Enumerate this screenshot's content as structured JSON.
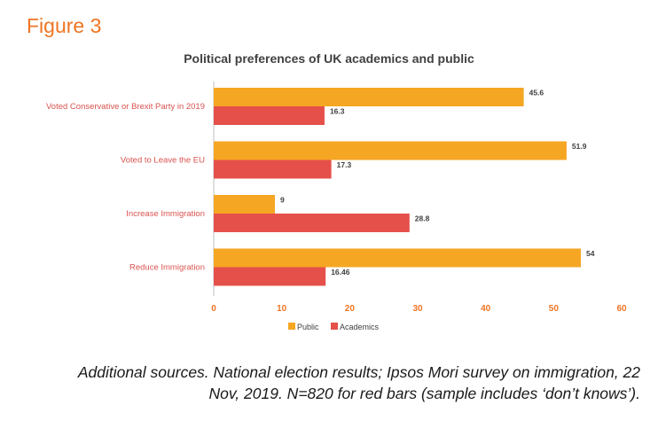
{
  "figure_label": "Figure 3",
  "caption": {
    "line1": "Additional sources. National election results; Ipsos Mori survey on immigration, 22",
    "line2": "Nov, 2019. N=820 for red bars (sample includes ‘don’t knows’)."
  },
  "colors": {
    "public": "#f5a623",
    "academics": "#e5504a",
    "figure_label": "#ee7523",
    "axis": "#ee7523"
  },
  "chart_data": {
    "type": "bar",
    "orientation": "horizontal",
    "title": "Political preferences of UK academics and public",
    "categories": [
      "Voted Conservative or Brexit Party in 2019",
      "Voted to Leave the EU",
      "Increase Immigration",
      "Reduce Immigration"
    ],
    "series": [
      {
        "name": "Public",
        "values": [
          45.6,
          51.9,
          9,
          54
        ],
        "labels": [
          "45.6",
          "51.9",
          "9",
          "54"
        ]
      },
      {
        "name": "Academics",
        "values": [
          16.3,
          17.3,
          28.8,
          16.46
        ],
        "labels": [
          "16.3",
          "17.3",
          "28.8",
          "16.46"
        ]
      }
    ],
    "xlim": [
      0,
      60
    ],
    "xticks": [
      0,
      10,
      20,
      30,
      40,
      50,
      60
    ],
    "grid": false,
    "legend_position": "bottom"
  }
}
